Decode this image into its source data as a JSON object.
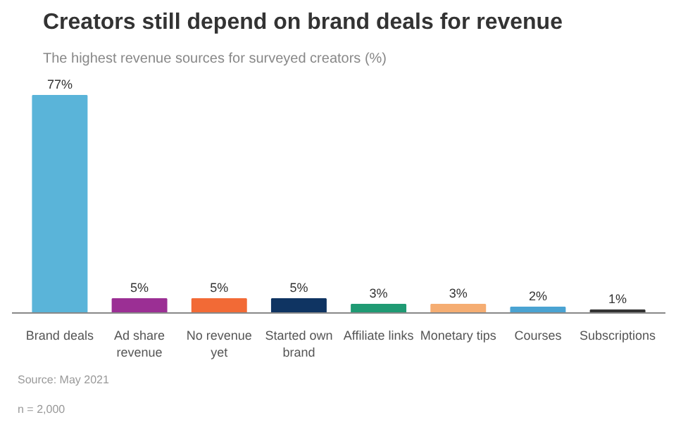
{
  "chart_data": {
    "type": "bar",
    "title": "Creators still depend on brand deals for revenue",
    "subtitle": "The highest revenue sources for surveyed creators (%)",
    "categories": [
      "Brand deals",
      "Ad share\nrevenue",
      "No revenue\nyet",
      "Started own\nbrand",
      "Affiliate links",
      "Monetary tips",
      "Courses",
      "Subscriptions"
    ],
    "values": [
      77,
      5,
      5,
      5,
      3,
      3,
      2,
      1
    ],
    "colors": [
      "#5ab4d9",
      "#9b2f94",
      "#f26a36",
      "#0f3462",
      "#1f9a73",
      "#f5ad72",
      "#4aa3d2",
      "#333333"
    ],
    "value_labels": [
      "77%",
      "5%",
      "5%",
      "5%",
      "3%",
      "3%",
      "2%",
      "1%"
    ],
    "grid": false,
    "annotations": [
      "Source: May 2021",
      "n = 2,000"
    ]
  }
}
